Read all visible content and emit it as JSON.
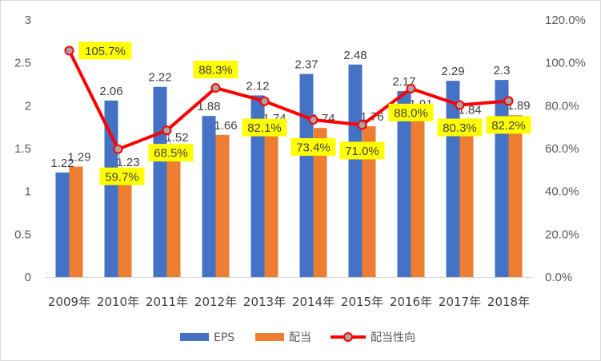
{
  "chart_data": {
    "type": "bar+line",
    "categories": [
      "2009年",
      "2010年",
      "2011年",
      "2012年",
      "2013年",
      "2014年",
      "2015年",
      "2016年",
      "2017年",
      "2018年"
    ],
    "series": [
      {
        "name": "EPS",
        "type": "bar",
        "axis": "left",
        "color": "#4472C4",
        "values": [
          1.22,
          2.06,
          2.22,
          1.88,
          2.12,
          2.37,
          2.48,
          2.17,
          2.29,
          2.3
        ],
        "labels": [
          "1.22",
          "2.06",
          "2.22",
          "1.88",
          "2.12",
          "2.37",
          "2.48",
          "2.17",
          "2.29",
          "2.3"
        ]
      },
      {
        "name": "配当",
        "type": "bar",
        "axis": "left",
        "color": "#ED7D31",
        "values": [
          1.29,
          1.23,
          1.52,
          1.66,
          1.74,
          1.74,
          1.76,
          1.91,
          1.84,
          1.89
        ],
        "labels": [
          "1.29",
          "1.23",
          "1.52",
          "1.66",
          "1.74",
          "1.74",
          "1.76",
          "1.91",
          "1.84",
          "1.89"
        ]
      },
      {
        "name": "配当性向",
        "type": "line",
        "axis": "right",
        "color": "#FF0000",
        "marker_color": "#A5A5A5",
        "values": [
          105.7,
          59.7,
          68.5,
          88.3,
          82.1,
          73.4,
          71.0,
          88.0,
          80.3,
          82.2
        ],
        "labels": [
          "105.7%",
          "59.7%",
          "68.5%",
          "88.3%",
          "82.1%",
          "73.4%",
          "71.0%",
          "88.0%",
          "80.3%",
          "82.2%"
        ],
        "label_background": "#FFFF00"
      }
    ],
    "y_left": {
      "min": 0,
      "max": 3,
      "ticks": [
        0,
        0.5,
        1,
        1.5,
        2,
        2.5,
        3
      ],
      "tick_labels": [
        "0",
        "0.5",
        "1",
        "1.5",
        "2",
        "2.5",
        "3"
      ]
    },
    "y_right": {
      "min": 0,
      "max": 120,
      "ticks": [
        0,
        20,
        40,
        60,
        80,
        100,
        120
      ],
      "tick_labels": [
        "0.0%",
        "20.0%",
        "40.0%",
        "60.0%",
        "80.0%",
        "100.0%",
        "120.0%"
      ]
    },
    "grid": false,
    "legend": {
      "position": "bottom",
      "entries": [
        "EPS",
        "配当",
        "配当性向"
      ]
    }
  }
}
